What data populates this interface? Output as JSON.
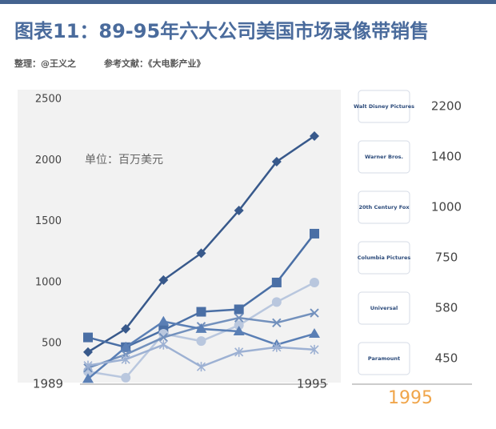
{
  "chart_data": {
    "type": "line",
    "title": "图表11：89-95年六大公司美国市场录像带销售",
    "subtitle": "整理：@王义之",
    "source": "参考文献：《大电影产业》",
    "annotation": "单位：百万美元",
    "categories": [
      "1989",
      null,
      null,
      null,
      null,
      null,
      "1995"
    ],
    "ylim": [
      180,
      2580
    ],
    "yticks": [
      500,
      1000,
      1500,
      2000,
      2500
    ],
    "grid": false,
    "series": [
      {
        "name": "Walt Disney Pictures",
        "color": "#38598b",
        "marker": "diamond",
        "values": [
          430,
          620,
          1020,
          1240,
          1590,
          1990,
          2200
        ]
      },
      {
        "name": "Warner Bros.",
        "color": "#4a6fa5",
        "marker": "square",
        "values": [
          550,
          470,
          610,
          760,
          780,
          1000,
          1400
        ]
      },
      {
        "name": "20th Century Fox",
        "color": "#b9c7de",
        "marker": "circle",
        "values": [
          270,
          220,
          580,
          520,
          650,
          840,
          1000
        ]
      },
      {
        "name": "Columbia Pictures",
        "color": "#7391bd",
        "marker": "x",
        "values": [
          300,
          410,
          550,
          640,
          710,
          670,
          750
        ]
      },
      {
        "name": "Universal",
        "color": "#5a7fb5",
        "marker": "triangle",
        "values": [
          210,
          470,
          680,
          620,
          600,
          490,
          580
        ]
      },
      {
        "name": "Paramount",
        "color": "#9db1d3",
        "marker": "asterisk",
        "values": [
          320,
          370,
          490,
          310,
          430,
          470,
          450
        ]
      }
    ]
  }
}
